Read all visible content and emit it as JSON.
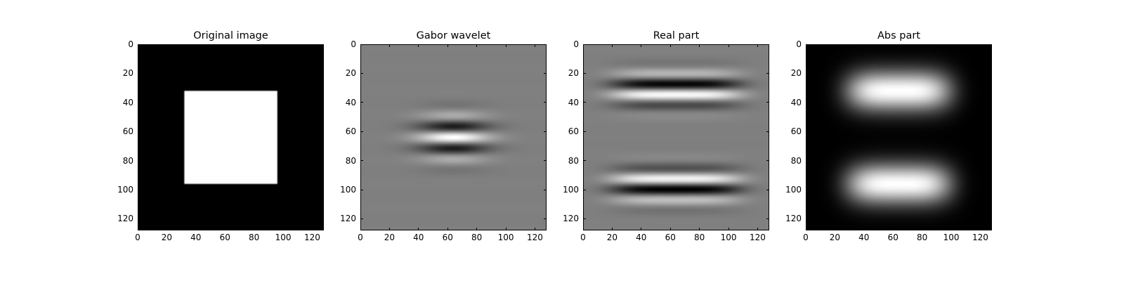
{
  "chart_data": [
    {
      "type": "heatmap",
      "title": "Original image",
      "colormap": "gray",
      "image_size": [
        128,
        128
      ],
      "xlim": [
        0,
        128
      ],
      "ylim": [
        128,
        0
      ],
      "xticks": [
        "0",
        "20",
        "40",
        "60",
        "80",
        "100",
        "120"
      ],
      "yticks": [
        "0",
        "20",
        "40",
        "60",
        "80",
        "100",
        "120"
      ],
      "content": "white square from 32 to 96 on black background"
    },
    {
      "type": "heatmap",
      "title": "Gabor wavelet",
      "colormap": "gray",
      "image_size": [
        128,
        128
      ],
      "xlim": [
        0,
        128
      ],
      "ylim": [
        128,
        0
      ],
      "xticks": [
        "0",
        "20",
        "40",
        "60",
        "80",
        "100",
        "120"
      ],
      "yticks": [
        "0",
        "20",
        "40",
        "60",
        "80",
        "100",
        "120"
      ]
    },
    {
      "type": "heatmap",
      "title": "Real part",
      "colormap": "gray",
      "image_size": [
        128,
        128
      ],
      "xlim": [
        0,
        128
      ],
      "ylim": [
        128,
        0
      ],
      "xticks": [
        "0",
        "20",
        "40",
        "60",
        "80",
        "100",
        "120"
      ],
      "yticks": [
        "0",
        "20",
        "40",
        "60",
        "80",
        "100",
        "120"
      ]
    },
    {
      "type": "heatmap",
      "title": "Abs part",
      "colormap": "gray",
      "image_size": [
        128,
        128
      ],
      "xlim": [
        0,
        128
      ],
      "ylim": [
        128,
        0
      ],
      "xticks": [
        "0",
        "20",
        "40",
        "60",
        "80",
        "100",
        "120"
      ],
      "yticks": [
        "0",
        "20",
        "40",
        "60",
        "80",
        "100",
        "120"
      ]
    }
  ]
}
